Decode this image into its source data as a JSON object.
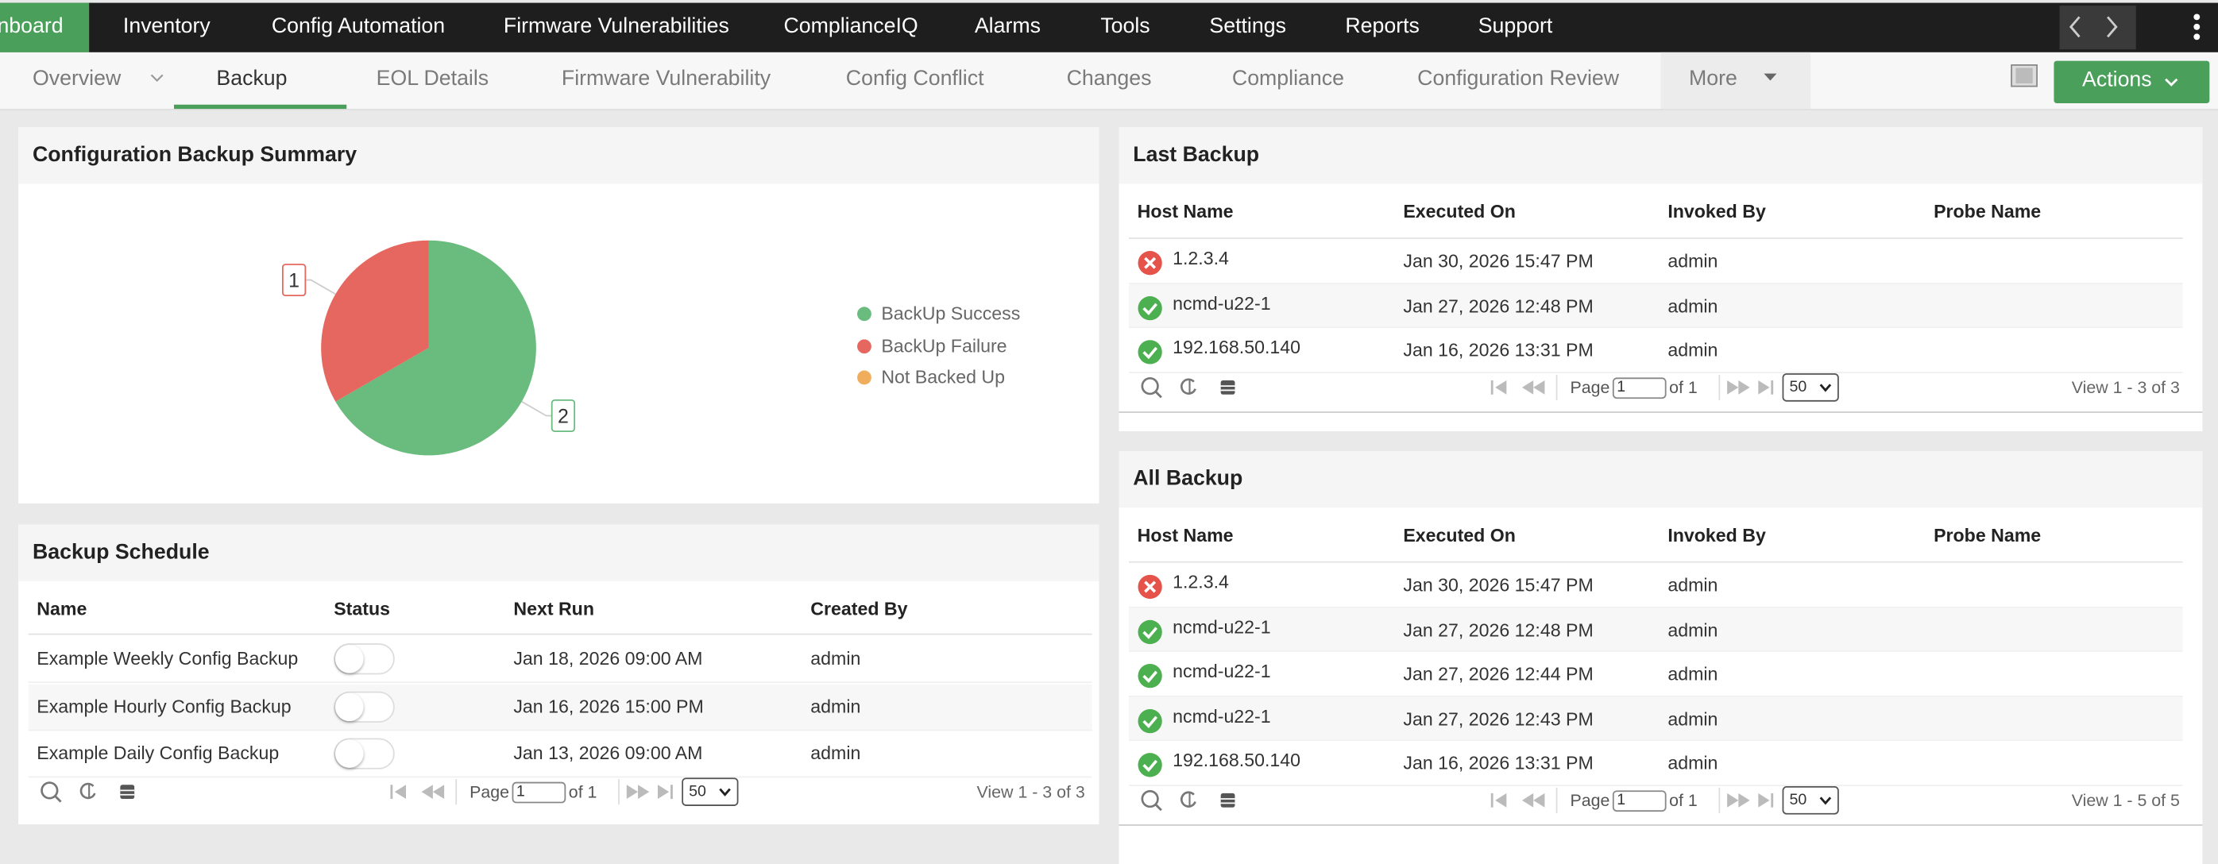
{
  "nav": {
    "tabs": [
      "nboard",
      "Inventory",
      "Config Automation",
      "Firmware Vulnerabilities",
      "ComplianceIQ",
      "Alarms",
      "Tools",
      "Settings",
      "Reports",
      "Support"
    ]
  },
  "subnav": {
    "tabs": [
      "Overview",
      "Backup",
      "EOL Details",
      "Firmware Vulnerability",
      "Config Conflict",
      "Changes",
      "Compliance",
      "Configuration Review",
      "More"
    ],
    "actions": "Actions"
  },
  "summary": {
    "title": "Configuration Backup Summary",
    "chart": {
      "type": "pie",
      "categories": [
        "BackUp Success",
        "BackUp Failure",
        "Not Backed Up"
      ],
      "values": [
        2,
        1,
        0
      ],
      "colors": [
        "#69bb7e",
        "#e5675f",
        "#f0ae5c"
      ]
    }
  },
  "schedule": {
    "title": "Backup Schedule",
    "columns": [
      "Name",
      "Status",
      "Next Run",
      "Created By"
    ],
    "rows": [
      [
        "Example Weekly Config Backup",
        "Jan 18, 2026 09:00 AM",
        "admin"
      ],
      [
        "Example Hourly Config Backup",
        "Jan 16, 2026 15:00 PM",
        "admin"
      ],
      [
        "Example Daily Config Backup",
        "Jan 13, 2026 09:00 AM",
        "admin"
      ]
    ],
    "pager": {
      "page_label": "Page",
      "page": "1",
      "of": "of 1",
      "size": "50",
      "view": "View 1 - 3 of 3"
    }
  },
  "last_backup": {
    "title": "Last Backup",
    "columns": [
      "Host Name",
      "Executed On",
      "Invoked By",
      "Probe Name"
    ],
    "rows": [
      {
        "status": "failed",
        "host": "1.2.3.4",
        "executed": "Jan 30, 2026 15:47 PM",
        "invoked": "admin"
      },
      {
        "status": "success",
        "host": "ncmd-u22-1",
        "executed": "Jan 27, 2026 12:48 PM",
        "invoked": "admin"
      },
      {
        "status": "success",
        "host": "192.168.50.140",
        "executed": "Jan 16, 2026 13:31 PM",
        "invoked": "admin"
      }
    ],
    "pager": {
      "page_label": "Page",
      "page": "1",
      "of": "of 1",
      "size": "50",
      "view": "View 1 - 3 of 3"
    }
  },
  "all_backup": {
    "title": "All Backup",
    "columns": [
      "Host Name",
      "Executed On",
      "Invoked By",
      "Probe Name"
    ],
    "rows": [
      {
        "status": "failed",
        "host": "1.2.3.4",
        "executed": "Jan 30, 2026 15:47 PM",
        "invoked": "admin"
      },
      {
        "status": "success",
        "host": "ncmd-u22-1",
        "executed": "Jan 27, 2026 12:48 PM",
        "invoked": "admin"
      },
      {
        "status": "success",
        "host": "ncmd-u22-1",
        "executed": "Jan 27, 2026 12:44 PM",
        "invoked": "admin"
      },
      {
        "status": "success",
        "host": "ncmd-u22-1",
        "executed": "Jan 27, 2026 12:43 PM",
        "invoked": "admin"
      },
      {
        "status": "success",
        "host": "192.168.50.140",
        "executed": "Jan 16, 2026 13:31 PM",
        "invoked": "admin"
      }
    ],
    "pager": {
      "page_label": "Page",
      "page": "1",
      "of": "of 1",
      "size": "50",
      "view": "View 1 - 5 of 5"
    }
  }
}
